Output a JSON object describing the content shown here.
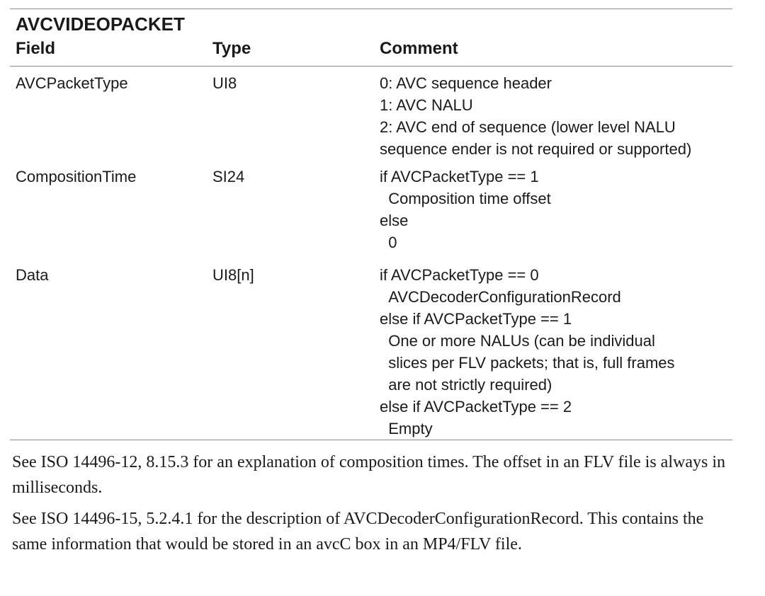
{
  "table": {
    "title": "AVCVIDEOPACKET",
    "headers": {
      "field": "Field",
      "type": "Type",
      "comment": "Comment"
    },
    "rows": [
      {
        "field": "AVCPacketType",
        "type": "UI8",
        "comment": "0: AVC sequence header\n1: AVC NALU\n2: AVC end of sequence (lower level NALU\nsequence ender is not required or supported)"
      },
      {
        "field": "CompositionTime",
        "type": "SI24",
        "comment": "if AVCPacketType == 1\n  Composition time offset\nelse\n  0"
      },
      {
        "field": "Data",
        "type": "UI8[n]",
        "comment": "if AVCPacketType == 0\n  AVCDecoderConfigurationRecord\nelse if AVCPacketType == 1\n  One or more NALUs (can be individual\n  slices per FLV packets; that is, full frames\n  are not strictly required)\nelse if AVCPacketType == 2\n  Empty"
      }
    ]
  },
  "notes": [
    "See ISO 14496-12, 8.15.3 for an explanation of composition times. The offset in an FLV file is always in milliseconds.",
    "See ISO 14496-15, 5.2.4.1 for the description of AVCDecoderConfigurationRecord. This contains the same information that would be stored in an avcC box in an MP4/FLV file."
  ]
}
